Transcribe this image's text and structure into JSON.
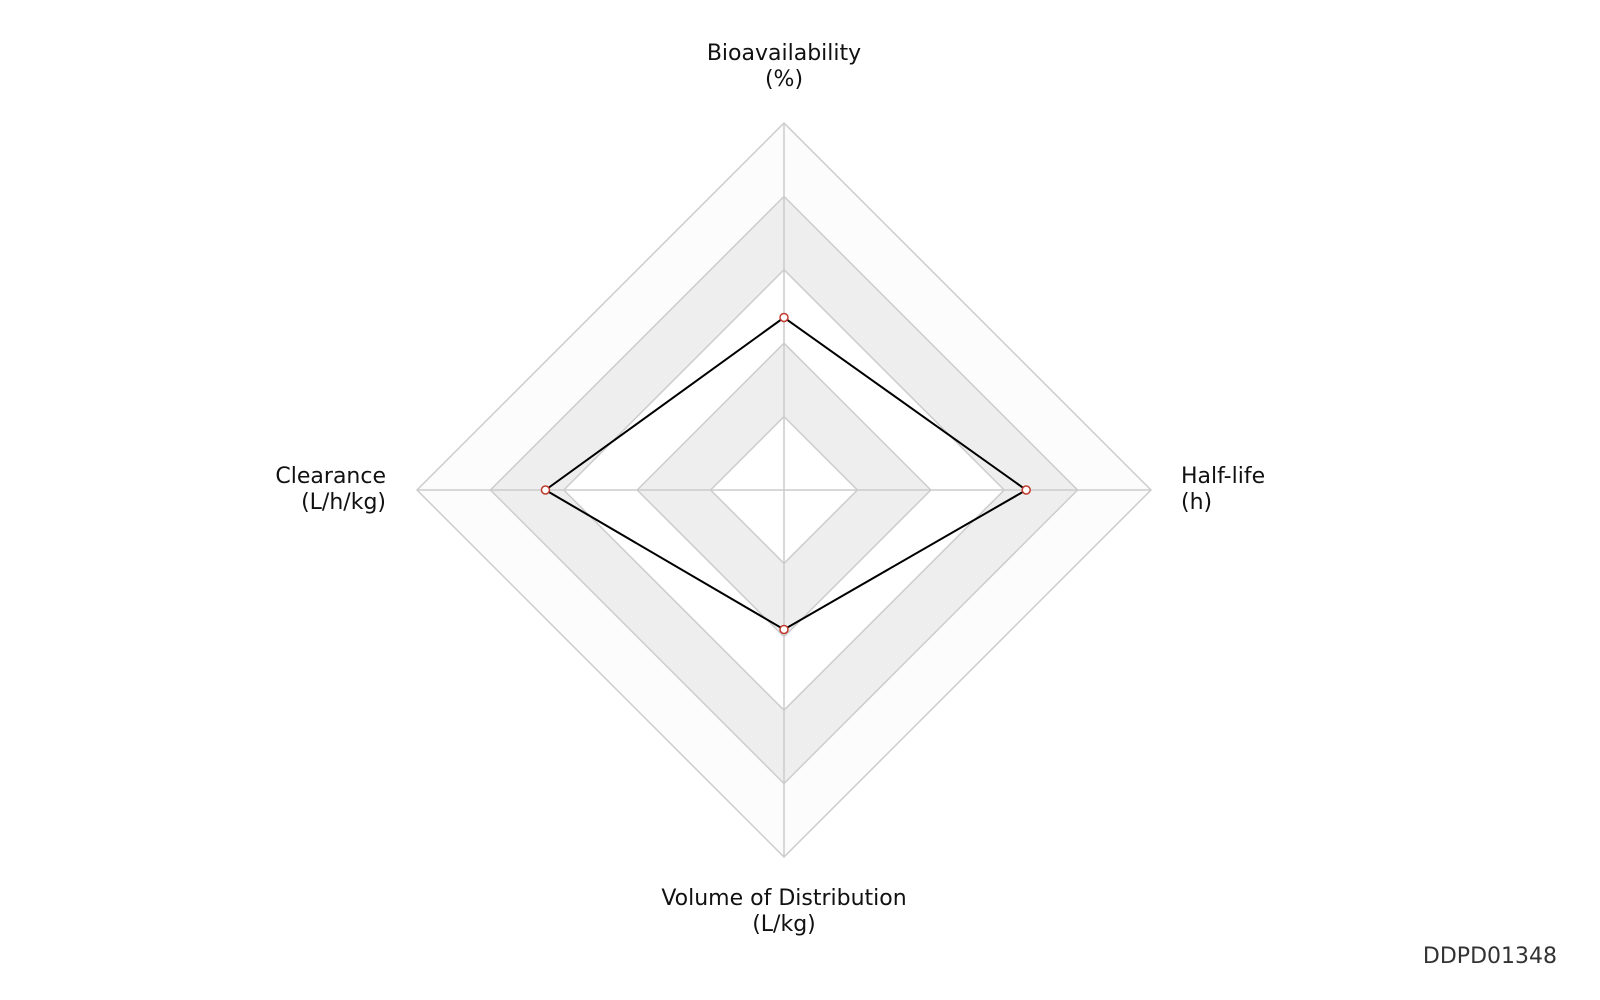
{
  "chart_data": {
    "type": "radar",
    "categories": [
      [
        "Bioavailability",
        "(%)"
      ],
      [
        "Half-life",
        "(h)"
      ],
      [
        "Volume of Distribution",
        "(L/kg)"
      ],
      [
        "Clearance",
        "(L/h/kg)"
      ]
    ],
    "values": [
      0.47,
      0.66,
      0.38,
      0.65
    ],
    "rlim": [
      0,
      1
    ],
    "levels": 5,
    "color": "#000000",
    "marker_color": "#c0392b",
    "watermark": "DDPD01348"
  }
}
